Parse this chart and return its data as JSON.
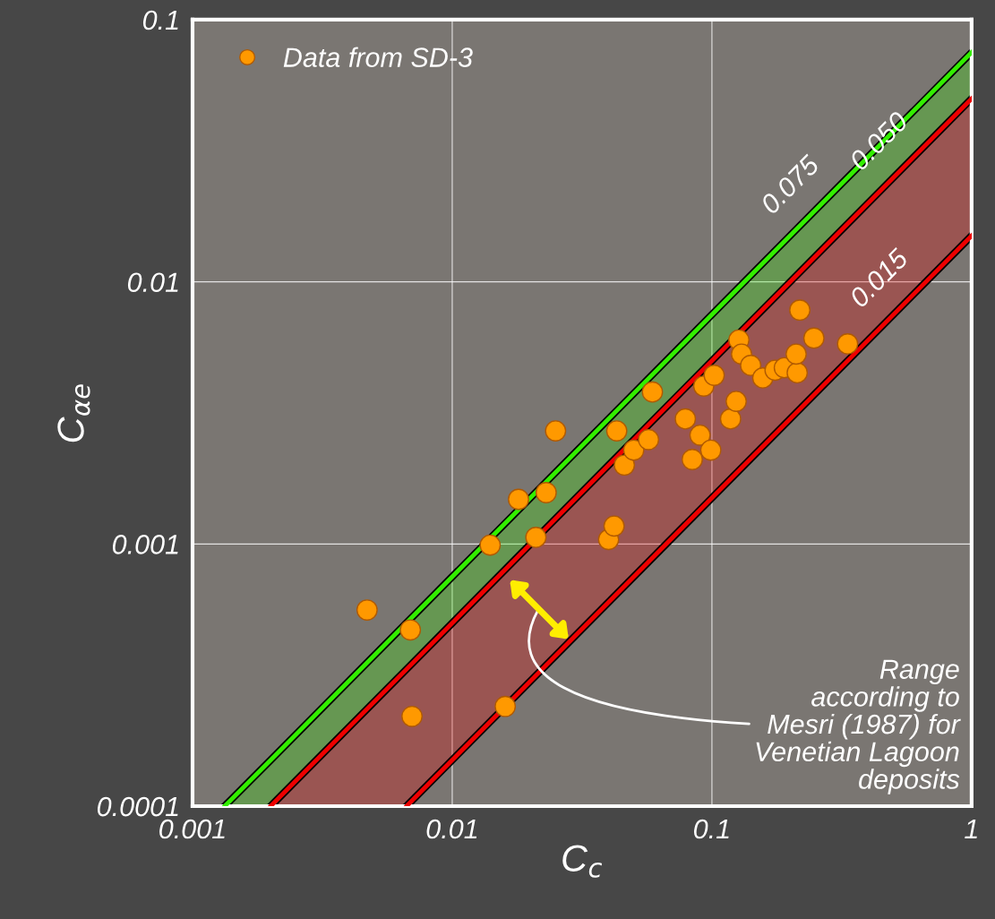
{
  "chart_data": {
    "type": "scatter",
    "log": "xy",
    "xlabel": "C$_{c}$",
    "ylabel": "C$_{αe}$",
    "xlim": [
      0.001,
      1
    ],
    "ylim": [
      0.0001,
      0.1
    ],
    "xticks": [
      0.001,
      0.01,
      0.1,
      1
    ],
    "yticks": [
      0.0001,
      0.001,
      0.01,
      0.1
    ],
    "grid": true,
    "legend": "top left",
    "marker": "circle",
    "annotations": [
      "Range\naccording to\nMesri (1987) for\nVenetian Lagoon\ndeposits"
    ],
    "series": [
      {
        "name": "0.075",
        "type": "line",
        "marker": "none",
        "color": "#33ee00",
        "x": [
          0.00133,
          0.002,
          1
        ],
        "values": [
          0.0001,
          0.00015,
          0.075
        ],
        "lower": [
          0.0001,
          0.0001,
          0.05
        ],
        "upper": [
          0.0001,
          0.00015,
          0.075
        ]
      },
      {
        "name": "0.050",
        "type": "line",
        "marker": "none",
        "color": "#ee0000",
        "x": [
          0.002,
          0.00667,
          1
        ],
        "values": [
          0.0001,
          0.000333,
          0.05
        ],
        "lower": [
          0.0001,
          0.0001,
          0.015
        ],
        "upper": [
          0.0001,
          0.000333,
          0.05
        ]
      },
      {
        "name": "0.015",
        "type": "line",
        "marker": "none",
        "color": "#ee0000",
        "x": [
          0.00667,
          1
        ],
        "values": [
          0.0001,
          0.015
        ]
      },
      {
        "name": "Data from SD-3",
        "color": "#ff9900",
        "x": [
          0.0047,
          0.0069,
          0.007,
          0.016,
          0.014,
          0.018,
          0.023,
          0.021,
          0.025,
          0.04,
          0.042,
          0.043,
          0.046,
          0.05,
          0.057,
          0.059,
          0.079,
          0.084,
          0.09,
          0.099,
          0.093,
          0.102,
          0.118,
          0.124,
          0.127,
          0.13,
          0.141,
          0.157,
          0.175,
          0.19,
          0.213,
          0.211,
          0.218,
          0.247,
          0.333
        ],
        "values": [
          0.00056,
          0.00047,
          0.00022,
          0.00024,
          0.00099,
          0.00148,
          0.00157,
          0.00106,
          0.0027,
          0.00104,
          0.00117,
          0.0027,
          0.002,
          0.00228,
          0.0025,
          0.0038,
          0.003,
          0.0021,
          0.0026,
          0.00228,
          0.004,
          0.0044,
          0.003,
          0.0035,
          0.006,
          0.0053,
          0.0048,
          0.0043,
          0.0046,
          0.0047,
          0.0045,
          0.0053,
          0.0078,
          0.0061,
          0.0058
        ]
      }
    ]
  }
}
